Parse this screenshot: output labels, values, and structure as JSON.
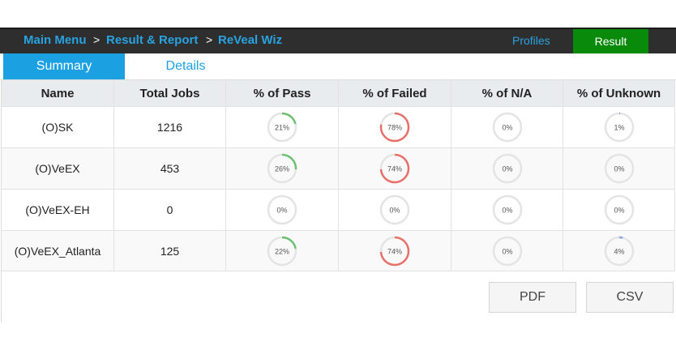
{
  "nav": {
    "breadcrumb": [
      "Main Menu",
      "Result & Report",
      "ReVeal Wiz"
    ],
    "separator": ">",
    "profiles": "Profiles",
    "result": "Result"
  },
  "tabs": [
    "Summary",
    "Details"
  ],
  "table": {
    "columns": [
      "Name",
      "Total Jobs",
      "% of Pass",
      "% of Failed",
      "% of N/A",
      "% of Unknown"
    ],
    "rows": [
      [
        "(O)SK",
        1216,
        {
          "value": 21,
          "label": "21%"
        },
        {
          "value": 78,
          "label": "78%"
        },
        {
          "value": 0,
          "label": "0%"
        },
        {
          "value": 1,
          "label": "1%"
        }
      ],
      [
        "(O)VeEX",
        453,
        {
          "value": 26,
          "label": "26%"
        },
        {
          "value": 74,
          "label": "74%"
        },
        {
          "value": 0,
          "label": "0%"
        },
        {
          "value": 0,
          "label": "0%"
        }
      ],
      [
        "(O)VeEX-EH",
        0,
        {
          "value": 0,
          "label": "0%"
        },
        {
          "value": 0,
          "label": "0%"
        },
        {
          "value": 0,
          "label": "0%"
        },
        {
          "value": 0,
          "label": "0%"
        }
      ],
      [
        "(O)VeEX_Atlanta",
        125,
        {
          "value": 22,
          "label": "22%"
        },
        {
          "value": 74,
          "label": "74%"
        },
        {
          "value": 0,
          "label": "0%"
        },
        {
          "value": 4,
          "label": "4%"
        }
      ]
    ]
  },
  "buttons": [
    "PDF",
    "CSV"
  ]
}
